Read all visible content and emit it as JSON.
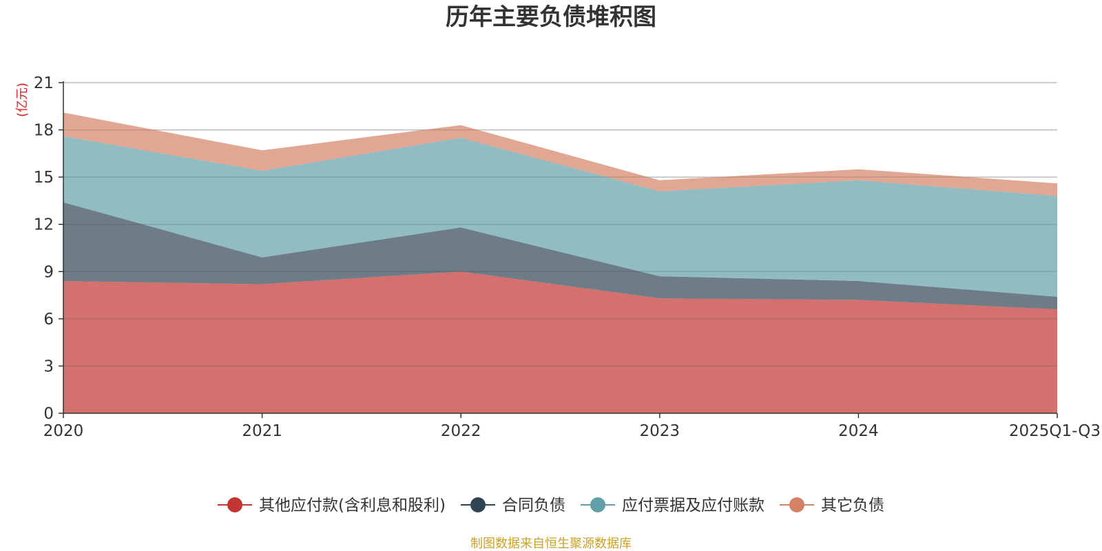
{
  "chart_data": {
    "type": "area",
    "stacked": true,
    "title": "历年主要负债堆积图",
    "unit_label": "(亿元)",
    "categories": [
      "2020",
      "2021",
      "2022",
      "2023",
      "2024",
      "2025Q1-Q3"
    ],
    "ylim": [
      0,
      21
    ],
    "yticks": [
      "0",
      "3",
      "6",
      "9",
      "12",
      "15",
      "18",
      "21"
    ],
    "grid": true,
    "legend_position": "bottom",
    "series": [
      {
        "name": "其他应付款(含利息和股利)",
        "color": "#c23531",
        "values": [
          8.4,
          8.2,
          9.0,
          7.3,
          7.2,
          6.6
        ]
      },
      {
        "name": "合同负债",
        "color": "#2f4554",
        "values": [
          5.0,
          1.7,
          2.8,
          1.4,
          1.2,
          0.8
        ]
      },
      {
        "name": "应付票据及应付账款",
        "color": "#61a0a8",
        "values": [
          4.2,
          5.5,
          5.7,
          5.4,
          6.4,
          6.4
        ]
      },
      {
        "name": "其它负债",
        "color": "#d48265",
        "values": [
          1.5,
          1.3,
          0.8,
          0.7,
          0.7,
          0.8
        ]
      }
    ]
  },
  "source_note": "制图数据来自恒生聚源数据库"
}
